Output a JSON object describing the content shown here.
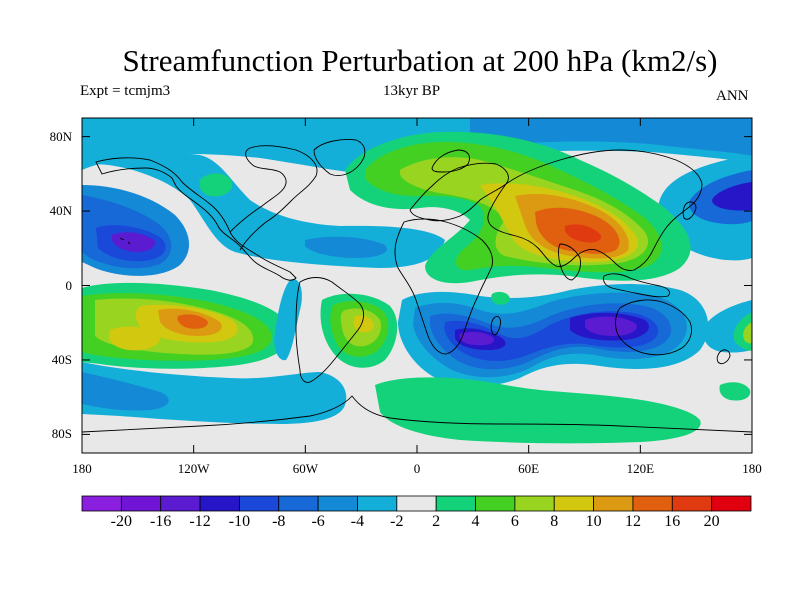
{
  "header": {
    "title": "Streamfunction Perturbation at 200 hPa (km2/s)",
    "left_label": "Expt = tcmjm3",
    "center_label": "13kyr BP",
    "right_label": "ANN"
  },
  "map": {
    "lat_ticks": [
      {
        "value": 80,
        "label": "80N"
      },
      {
        "value": 40,
        "label": "40N"
      },
      {
        "value": 0,
        "label": "0"
      },
      {
        "value": -40,
        "label": "40S"
      },
      {
        "value": -80,
        "label": "80S"
      }
    ],
    "lon_ticks": [
      {
        "value": -180,
        "label": "180"
      },
      {
        "value": -120,
        "label": "120W"
      },
      {
        "value": -60,
        "label": "60W"
      },
      {
        "value": 0,
        "label": "0"
      },
      {
        "value": 60,
        "label": "60E"
      },
      {
        "value": 120,
        "label": "120E"
      },
      {
        "value": 180,
        "label": "180"
      }
    ],
    "lon_range": [
      -180,
      180
    ],
    "lat_range": [
      -90,
      90
    ],
    "ocean_color": "#e8e8e8",
    "features": [
      {
        "name": "Eurasian positive maximum",
        "lon": 90,
        "lat": 27,
        "value": 18
      },
      {
        "name": "South Pacific positive maximum",
        "lon": -128,
        "lat": -18,
        "value": 16
      },
      {
        "name": "South Indian Ocean minimum",
        "lon": 110,
        "lat": -20,
        "value": -16
      },
      {
        "name": "South Atlantic / Africa minimum",
        "lon": 28,
        "lat": -30,
        "value": -14
      },
      {
        "name": "North Pacific minimum",
        "lon": -143,
        "lat": 23,
        "value": -14
      },
      {
        "name": "West Pacific minimum",
        "lon": 160,
        "lat": 45,
        "value": -12
      },
      {
        "name": "South America positive",
        "lon": -30,
        "lat": -18,
        "value": 10
      }
    ]
  },
  "colorbar": {
    "colors": [
      "#8b1fe0",
      "#7014d6",
      "#5a1bd1",
      "#2616c8",
      "#1a48d8",
      "#1669d6",
      "#1489d6",
      "#14afd9",
      "#e8e8e8",
      "#14d27a",
      "#44d022",
      "#98d420",
      "#d2c810",
      "#dc9a12",
      "#e06010",
      "#e03a10",
      "#e00010"
    ],
    "labels": [
      "-20",
      "-16",
      "-12",
      "-10",
      "-8",
      "-6",
      "-4",
      "-2",
      "2",
      "4",
      "6",
      "8",
      "10",
      "12",
      "16",
      "20"
    ]
  }
}
